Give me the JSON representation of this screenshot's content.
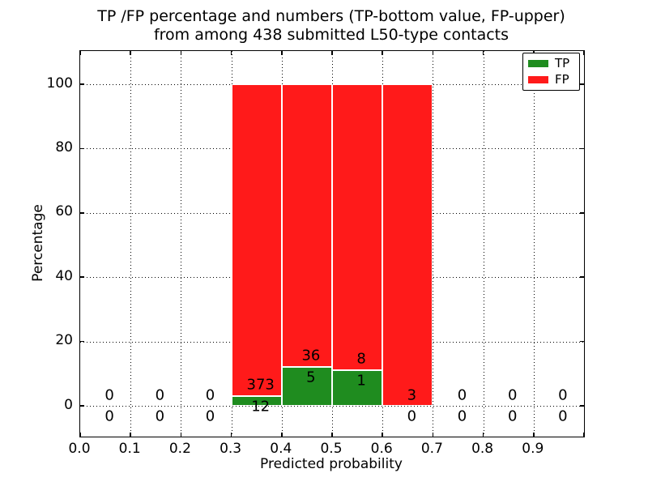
{
  "title": {
    "line1": "TP /FP percentage and numbers (TP-bottom value, FP-upper)",
    "line2": "from among 438 submitted L50-type contacts"
  },
  "axes": {
    "xlabel": "Predicted probability",
    "ylabel": "Percentage",
    "x_tick_labels": [
      "0.0",
      "0.1",
      "0.2",
      "0.3",
      "0.4",
      "0.5",
      "0.6",
      "0.7",
      "0.8",
      "0.9"
    ],
    "y_tick_labels": [
      "0",
      "20",
      "40",
      "60",
      "80",
      "100"
    ]
  },
  "legend": {
    "items": [
      {
        "label": "TP",
        "color": "#1f8c1f"
      },
      {
        "label": "FP",
        "color": "#ff1a1a"
      }
    ]
  },
  "chart_data": {
    "type": "bar",
    "stacked": true,
    "title": "TP /FP percentage and numbers (TP-bottom value, FP-upper) from among 438 submitted L50-type contacts",
    "xlabel": "Predicted probability",
    "ylabel": "Percentage",
    "total_submitted": 438,
    "xlim": [
      0.0,
      1.0
    ],
    "ylim": [
      -10,
      110
    ],
    "y_ticks": [
      0,
      20,
      40,
      60,
      80,
      100
    ],
    "grid": true,
    "legend_position": "upper right",
    "series": [
      {
        "name": "TP",
        "color": "#1f8c1f"
      },
      {
        "name": "FP",
        "color": "#ff1a1a"
      }
    ],
    "bins": [
      {
        "range": [
          0.0,
          0.1
        ],
        "tp_count": 0,
        "fp_count": 0,
        "tp_pct": 0,
        "fp_pct": 0
      },
      {
        "range": [
          0.1,
          0.2
        ],
        "tp_count": 0,
        "fp_count": 0,
        "tp_pct": 0,
        "fp_pct": 0
      },
      {
        "range": [
          0.2,
          0.3
        ],
        "tp_count": 0,
        "fp_count": 0,
        "tp_pct": 0,
        "fp_pct": 0
      },
      {
        "range": [
          0.3,
          0.4
        ],
        "tp_count": 12,
        "fp_count": 373,
        "tp_pct": 3.12,
        "fp_pct": 96.88
      },
      {
        "range": [
          0.4,
          0.5
        ],
        "tp_count": 5,
        "fp_count": 36,
        "tp_pct": 12.2,
        "fp_pct": 87.8
      },
      {
        "range": [
          0.5,
          0.6
        ],
        "tp_count": 1,
        "fp_count": 8,
        "tp_pct": 11.11,
        "fp_pct": 88.89
      },
      {
        "range": [
          0.6,
          0.7
        ],
        "tp_count": 0,
        "fp_count": 3,
        "tp_pct": 0,
        "fp_pct": 100
      },
      {
        "range": [
          0.7,
          0.8
        ],
        "tp_count": 0,
        "fp_count": 0,
        "tp_pct": 0,
        "fp_pct": 0
      },
      {
        "range": [
          0.8,
          0.9
        ],
        "tp_count": 0,
        "fp_count": 0,
        "tp_pct": 0,
        "fp_pct": 0
      },
      {
        "range": [
          0.9,
          1.0
        ],
        "tp_count": 0,
        "fp_count": 0,
        "tp_pct": 0,
        "fp_pct": 0
      }
    ]
  }
}
